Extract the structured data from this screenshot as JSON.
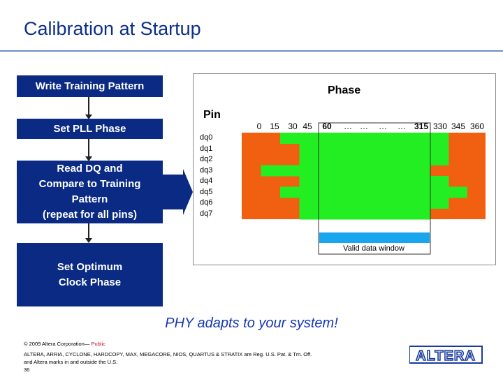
{
  "title": "Calibration at Startup",
  "flow": {
    "step1": "Write Training Pattern",
    "step2": "Set PLL Phase",
    "step3": [
      "Read DQ and",
      "Compare to Training",
      "Pattern",
      "(repeat for all pins)"
    ],
    "step4": [
      "Set Optimum",
      "Clock Phase"
    ]
  },
  "panel": {
    "phase_label": "Phase",
    "pin_label": "Pin",
    "valid_label": "Valid data window",
    "colors": {
      "fail": "#f06010",
      "pass": "#22ee22",
      "window": "#1aa6ee"
    }
  },
  "chart_data": {
    "type": "heatmap",
    "x_ticks": [
      "0",
      "15",
      "30",
      "45",
      "60",
      "…",
      "…",
      "…",
      "…",
      "315",
      "330",
      "345",
      "360"
    ],
    "pins": [
      "dq0",
      "dq1",
      "dq2",
      "dq3",
      "dq4",
      "dq5",
      "dq6",
      "dq7"
    ],
    "valid_window_start_deg": 60,
    "valid_window_end_deg": 315,
    "pass_ranges_deg": [
      {
        "pin": "dq0",
        "start": 30,
        "end": 330
      },
      {
        "pin": "dq1",
        "start": 45,
        "end": 330
      },
      {
        "pin": "dq2",
        "start": 45,
        "end": 330
      },
      {
        "pin": "dq3",
        "start": 15,
        "end": 315
      },
      {
        "pin": "dq4",
        "start": 45,
        "end": 330
      },
      {
        "pin": "dq5",
        "start": 30,
        "end": 345
      },
      {
        "pin": "dq6",
        "start": 45,
        "end": 330
      },
      {
        "pin": "dq7",
        "start": 45,
        "end": 315
      }
    ]
  },
  "tagline": "PHY adapts to your system!",
  "footer": {
    "copyright": "© 2009 Altera Corporation—",
    "public": "Public",
    "trademark1": "ALTERA, ARRIA, CYCLONE, HARDCOPY, MAX, MEGACORE, NIOS, QUARTUS & STRATIX are Reg. U.S. Pat. & Tm. Off.",
    "trademark2": "and Altera marks in and outside the U.S.",
    "page": "36"
  },
  "logo_text": "ALTERA"
}
